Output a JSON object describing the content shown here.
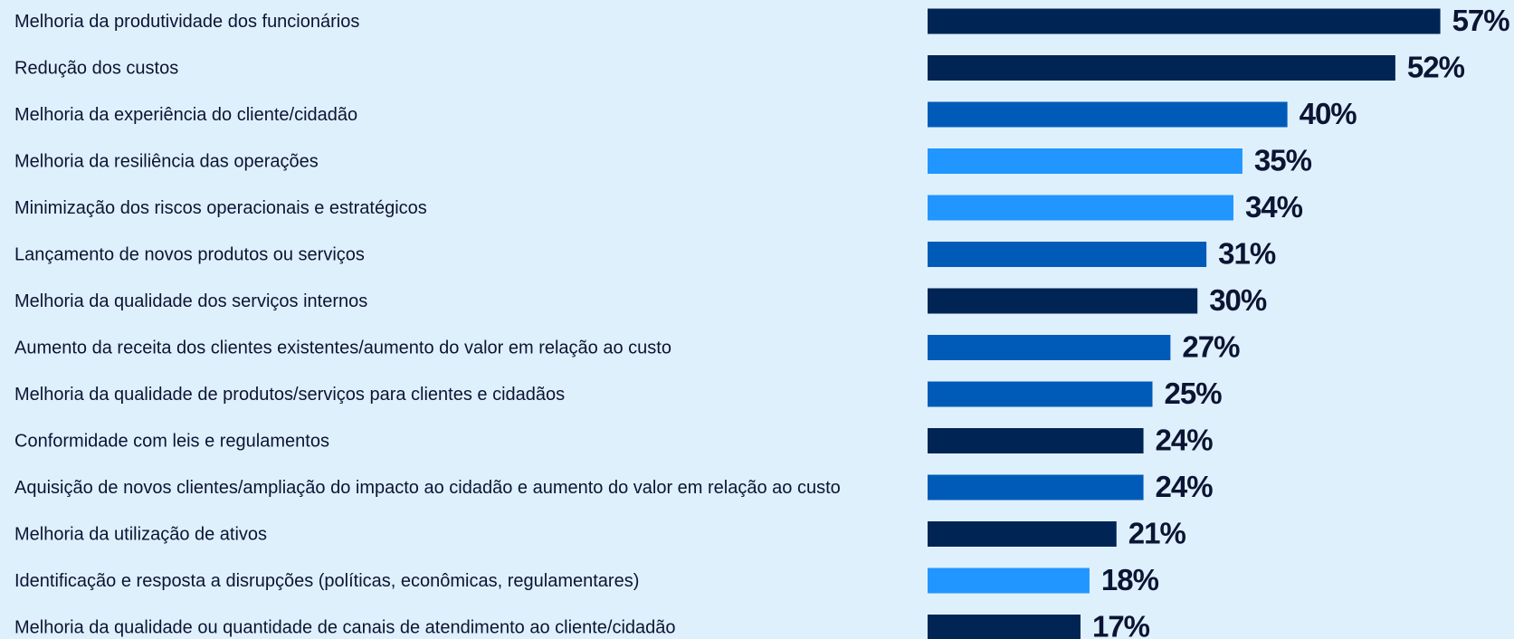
{
  "chart_data": {
    "type": "bar",
    "orientation": "horizontal",
    "categories": [
      "Melhoria da produtividade dos funcionários",
      "Redução dos custos",
      "Melhoria da experiência do cliente/cidadão",
      "Melhoria da resiliência das operações",
      "Minimização dos riscos operacionais e estratégicos",
      "Lançamento de novos produtos ou serviços",
      "Melhoria da qualidade dos serviços internos",
      "Aumento da receita dos clientes existentes/aumento do valor em relação ao custo",
      "Melhoria da qualidade de produtos/serviços para clientes e cidadãos",
      "Conformidade com leis e regulamentos",
      "Aquisição de novos clientes/ampliação do impacto ao cidadão e aumento do valor em relação ao custo",
      "Melhoria da utilização de ativos",
      "Identificação e resposta a disrupções (políticas, econômicas, regulamentares)",
      "Melhoria da qualidade ou quantidade de canais de atendimento ao cliente/cidadão"
    ],
    "values": [
      57,
      52,
      40,
      35,
      34,
      31,
      30,
      27,
      25,
      24,
      24,
      21,
      18,
      17
    ],
    "value_labels": [
      "57%",
      "52%",
      "40%",
      "35%",
      "34%",
      "31%",
      "30%",
      "27%",
      "25%",
      "24%",
      "24%",
      "21%",
      "18%",
      "17%"
    ],
    "colors": [
      "#002554",
      "#002554",
      "#005bb8",
      "#2196ff",
      "#2196ff",
      "#005bb8",
      "#002554",
      "#005bb8",
      "#005bb8",
      "#002554",
      "#005bb8",
      "#002554",
      "#2196ff",
      "#002554"
    ]
  }
}
